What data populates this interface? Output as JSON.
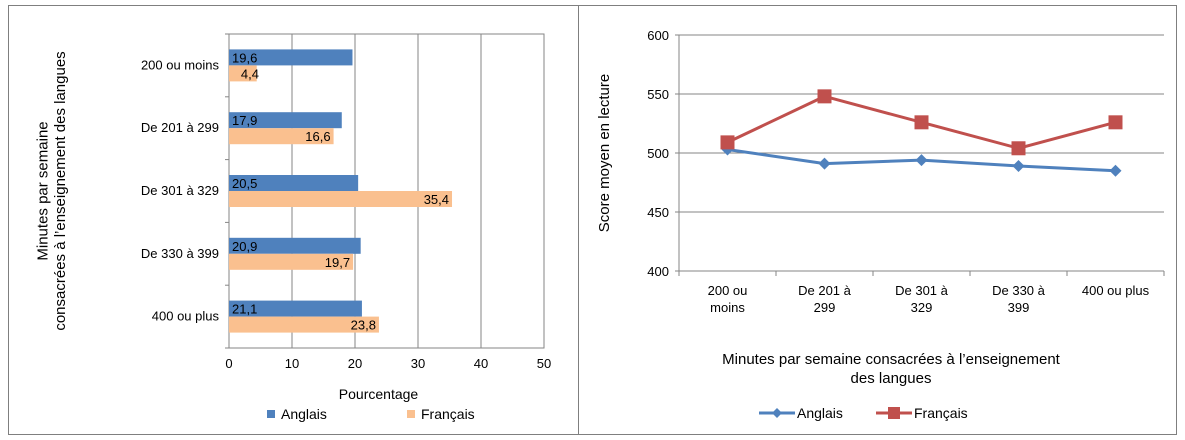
{
  "colors": {
    "anglais": "#4f81bd",
    "francais": "#fac08f",
    "line_anglais": "#4f81bd",
    "line_francais": "#c0504d",
    "grid": "#868686"
  },
  "chart_data": [
    {
      "type": "bar",
      "orientation": "horizontal",
      "categories": [
        "200 ou moins",
        "De 201 à 299",
        "De 301 à 329",
        "De 330 à 399",
        "400 ou plus"
      ],
      "series": [
        {
          "name": "Anglais",
          "values": [
            19.6,
            17.9,
            20.5,
            20.9,
            21.1
          ],
          "labels": [
            "19,6",
            "17,9",
            "20,5",
            "20,9",
            "21,1"
          ]
        },
        {
          "name": "Français",
          "values": [
            4.4,
            16.6,
            35.4,
            19.7,
            23.8
          ],
          "labels": [
            "4,4",
            "16,6",
            "35,4",
            "19,7",
            "23,8"
          ]
        }
      ],
      "xlabel": "Pourcentage",
      "ylabel": "Minutes par semaine consacrées à l’enseignement des langues",
      "xlim": [
        0,
        50
      ],
      "xticks": [
        "0",
        "10",
        "20",
        "30",
        "40",
        "50"
      ],
      "grid": true,
      "legend": "bottom"
    },
    {
      "type": "line",
      "categories": [
        "200 ou moins",
        "De 201 à 299",
        "De 301 à 329",
        "De 330 à 399",
        "400 ou plus"
      ],
      "series": [
        {
          "name": "Anglais",
          "values": [
            503,
            491,
            494,
            489,
            485
          ]
        },
        {
          "name": "Français",
          "values": [
            509,
            548,
            526,
            504,
            526
          ]
        }
      ],
      "xlabel": "Minutes par semaine consacrées à l’enseignement des langues",
      "ylabel": "Score moyen en lecture",
      "ylim": [
        400,
        600
      ],
      "yticks": [
        "400",
        "450",
        "500",
        "550",
        "600"
      ],
      "grid": true,
      "legend": "bottom"
    }
  ]
}
